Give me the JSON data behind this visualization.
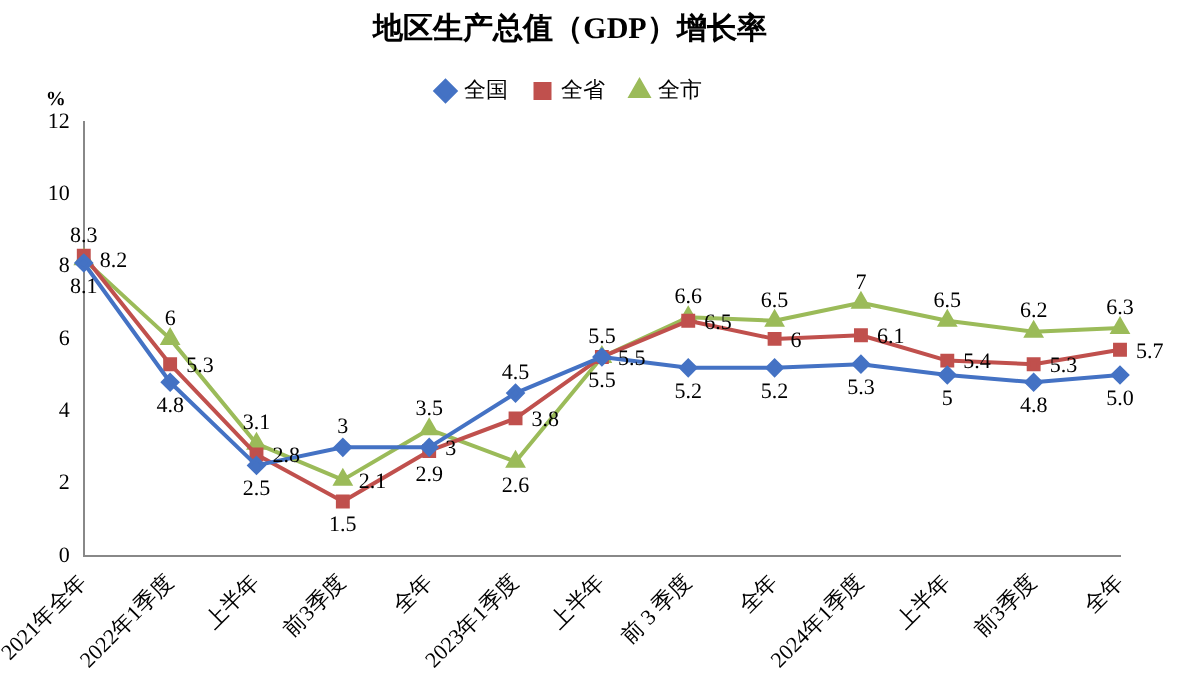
{
  "chart_data": {
    "type": "line",
    "title": "地区生产总值（GDP）增长率",
    "ylabel": "%",
    "categories": [
      "2021年全年",
      "2022年1季度",
      "上半年",
      "前3季度",
      "全年",
      "2023年1季度",
      "上半年",
      "前 3 季度",
      "全年",
      "2024年1季度",
      "上半年",
      "前3季度",
      "全年"
    ],
    "series": [
      {
        "name": "全国",
        "color": "#4472c4",
        "marker": "diamond",
        "values": [
          8.1,
          4.8,
          2.5,
          3,
          3,
          4.5,
          5.5,
          5.2,
          5.2,
          5.3,
          5,
          4.8,
          5.0
        ],
        "value_labels": [
          "8.1",
          "4.8",
          "2.5",
          "3",
          "3",
          "4.5",
          "5.5",
          "5.2",
          "5.2",
          "5.3",
          "5",
          "4.8",
          "5.0"
        ]
      },
      {
        "name": "全省",
        "color": "#c0504d",
        "marker": "square",
        "values": [
          8.3,
          5.3,
          2.8,
          1.5,
          2.9,
          3.8,
          5.5,
          6.5,
          6,
          6.1,
          5.4,
          5.3,
          5.7
        ],
        "value_labels": [
          "8.3",
          "5.3",
          "2.8",
          "1.5",
          "2.9",
          "3.8",
          "5.5",
          "6.5",
          "6",
          "6.1",
          "5.4",
          "5.3",
          "5.7"
        ]
      },
      {
        "name": "全市",
        "color": "#9bbb59",
        "marker": "triangle",
        "values": [
          8.2,
          6,
          3.1,
          2.1,
          3.5,
          2.6,
          5.5,
          6.6,
          6.5,
          7,
          6.5,
          6.2,
          6.3
        ],
        "value_labels": [
          "8.2",
          "6",
          "3.1",
          "2.1",
          "3.5",
          "2.6",
          "5.5",
          "6.6",
          "6.5",
          "7",
          "6.5",
          "6.2",
          "6.3"
        ]
      }
    ],
    "ylim": [
      0,
      12
    ],
    "yticks": [
      0,
      2,
      4,
      6,
      8,
      10,
      12
    ],
    "grid": false,
    "legend": "top"
  }
}
